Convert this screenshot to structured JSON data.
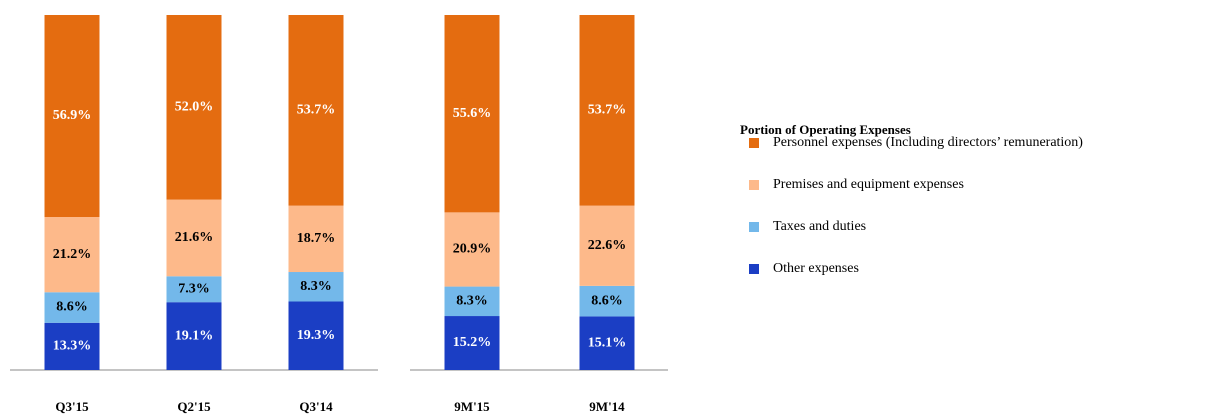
{
  "chart_data": {
    "type": "stacked_bar",
    "legend_title": "Portion of Operating Expenses",
    "categories": [
      "Q3'15",
      "Q2'15",
      "Q3'14",
      "9M'15",
      "9M'14"
    ],
    "ylim": [
      0,
      100
    ],
    "series": [
      {
        "name": "Other expenses",
        "color": "#1b3ec4",
        "values": [
          13.3,
          19.1,
          19.3,
          15.2,
          15.1
        ],
        "value_labels": [
          "13.3%",
          "19.1%",
          "19.3%",
          "15.2%",
          "15.1%"
        ]
      },
      {
        "name": "Taxes and duties",
        "color": "#73b8ea",
        "values": [
          8.6,
          7.3,
          8.3,
          8.3,
          8.6
        ],
        "value_labels": [
          "8.6%",
          "7.3%",
          "8.3%",
          "8.3%",
          "8.6%"
        ]
      },
      {
        "name": "Premises and equipment expenses",
        "color": "#fdb98a",
        "values": [
          21.2,
          21.6,
          18.7,
          20.9,
          22.6
        ],
        "value_labels": [
          "21.2%",
          "21.6%",
          "18.7%",
          "20.9%",
          "22.6%"
        ]
      },
      {
        "name": "Personnel expenses (Including directors’ remuneration)",
        "color": "#e46c10",
        "values": [
          56.9,
          52,
          53.7,
          55.6,
          53.7
        ],
        "value_labels": [
          "56.9%",
          "52.0%",
          "53.7%",
          "55.6%",
          "53.7%"
        ]
      }
    ]
  }
}
